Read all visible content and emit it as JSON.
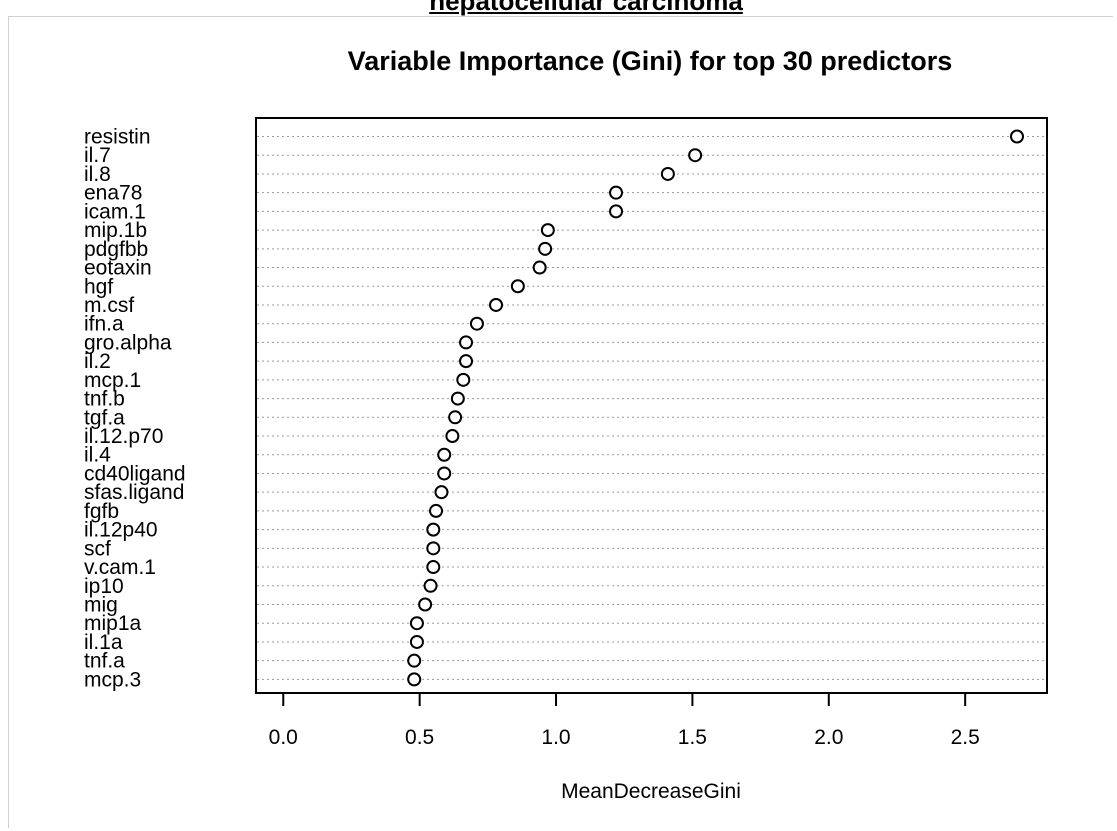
{
  "page": {
    "header_title": "hepatocellular carcinoma"
  },
  "chart_data": {
    "type": "scatter",
    "title": "Variable Importance (Gini) for top 30 predictors",
    "xlabel": "MeanDecreaseGini",
    "ylabel": "",
    "xlim": [
      -0.1,
      2.8
    ],
    "xticks": [
      0.0,
      0.5,
      1.0,
      1.5,
      2.0,
      2.5
    ],
    "xtick_labels": [
      "0.0",
      "0.5",
      "1.0",
      "1.5",
      "2.0",
      "2.5"
    ],
    "grid": "dotted horizontal lines",
    "categories": [
      "resistin",
      "il.7",
      "il.8",
      "ena78",
      "icam.1",
      "mip.1b",
      "pdgfbb",
      "eotaxin",
      "hgf",
      "m.csf",
      "ifn.a",
      "gro.alpha",
      "il.2",
      "mcp.1",
      "tnf.b",
      "tgf.a",
      "il.12.p70",
      "il.4",
      "cd40ligand",
      "sfas.ligand",
      "fgfb",
      "il.12p40",
      "scf",
      "v.cam.1",
      "ip10",
      "mig",
      "mip1a",
      "il.1a",
      "tnf.a",
      "mcp.3"
    ],
    "values": [
      2.69,
      1.51,
      1.41,
      1.22,
      1.22,
      0.97,
      0.96,
      0.94,
      0.86,
      0.78,
      0.71,
      0.67,
      0.67,
      0.66,
      0.64,
      0.63,
      0.62,
      0.59,
      0.59,
      0.58,
      0.56,
      0.55,
      0.55,
      0.55,
      0.54,
      0.52,
      0.49,
      0.49,
      0.48,
      0.48
    ]
  }
}
